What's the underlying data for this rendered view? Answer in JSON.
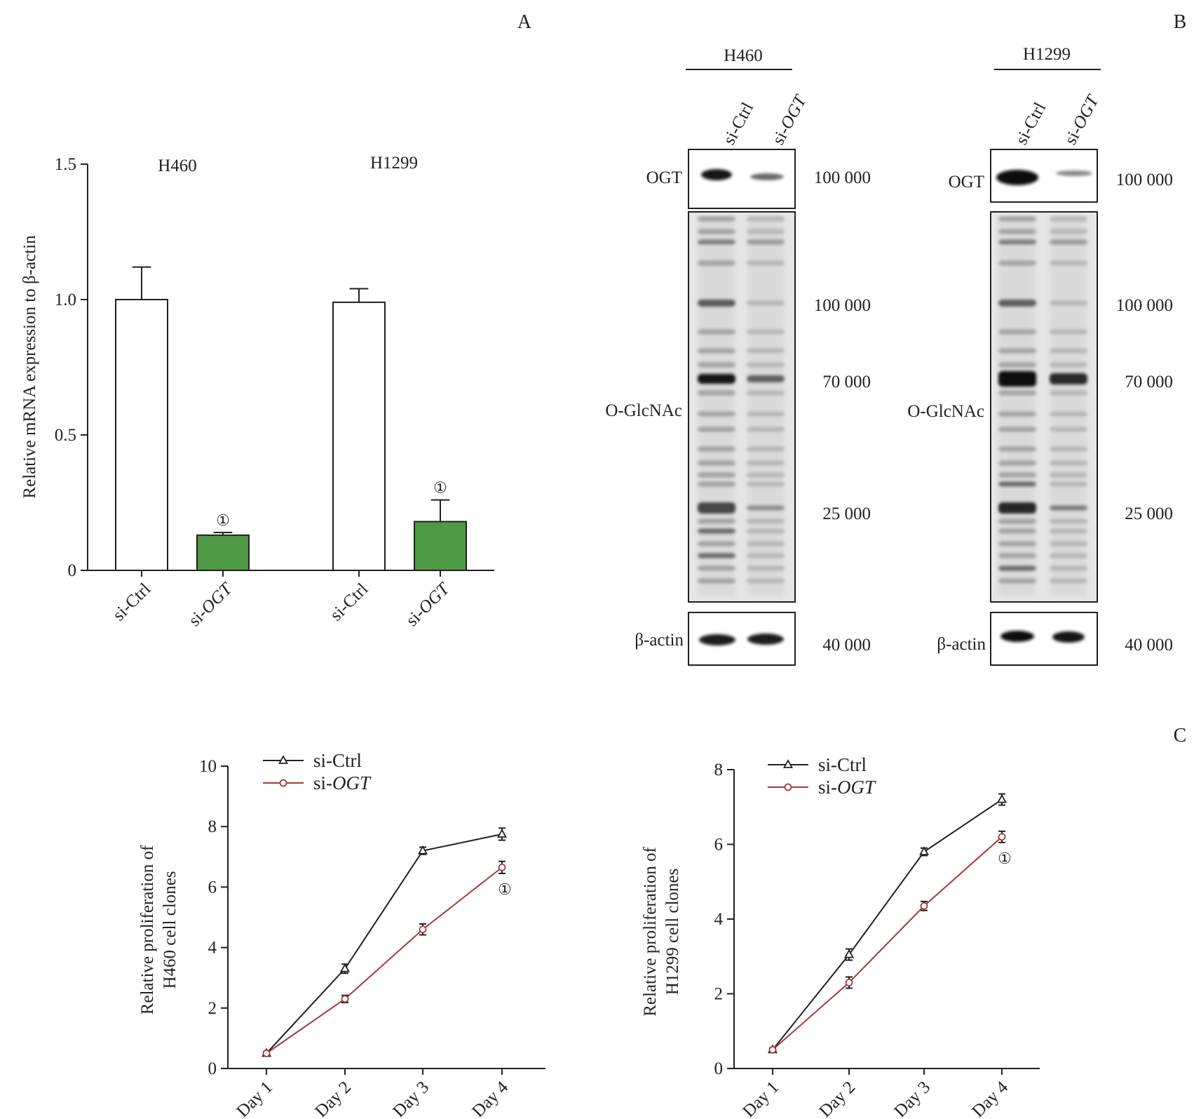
{
  "panel_letters": {
    "a": "A",
    "b": "B",
    "c": "C"
  },
  "sig_mark": "①",
  "chart_data": [
    {
      "id": "A",
      "type": "bar",
      "ylabel": "Relative mRNA expression to β-actin",
      "ylim": [
        0,
        1.5
      ],
      "yticks": [
        "0",
        "0.5",
        "1.0",
        "1.5"
      ],
      "ytick_values": [
        0,
        0.5,
        1.0,
        1.5
      ],
      "groups": [
        "H460",
        "H1299"
      ],
      "categories": [
        {
          "prefix": "si-",
          "name": "Ctrl",
          "italic": false
        },
        {
          "prefix": "si-",
          "name": "OGT",
          "italic": true
        },
        {
          "prefix": "si-",
          "name": "Ctrl",
          "italic": false
        },
        {
          "prefix": "si-",
          "name": "OGT",
          "italic": true
        }
      ],
      "values": [
        1.0,
        0.13,
        0.99,
        0.18
      ],
      "errors": [
        0.12,
        0.01,
        0.05,
        0.08
      ],
      "colors": [
        "#ffffff",
        "#4e9a45",
        "#ffffff",
        "#4e9a45"
      ],
      "significant": [
        false,
        true,
        false,
        true
      ]
    },
    {
      "id": "C1",
      "type": "line",
      "ylabel_lines": [
        "Relative proliferation of",
        "H460 cell clones"
      ],
      "categories": [
        "Day 1",
        "Day 2",
        "Day 3",
        "Day 4"
      ],
      "ylim": [
        0,
        10
      ],
      "yticks": [
        "0",
        "2",
        "4",
        "6",
        "8",
        "10"
      ],
      "ytick_values": [
        0,
        2,
        4,
        6,
        8,
        10
      ],
      "series": [
        {
          "prefix": "si-",
          "name": "Ctrl",
          "italic": false,
          "marker": "triangle",
          "color": "#231f20",
          "values": [
            0.5,
            3.3,
            7.2,
            7.75
          ],
          "errors": [
            0.05,
            0.15,
            0.12,
            0.2
          ]
        },
        {
          "prefix": "si-",
          "name": "OGT",
          "italic": true,
          "marker": "circle",
          "color": "#a23b3b",
          "values": [
            0.5,
            2.3,
            4.6,
            6.65
          ],
          "errors": [
            0.05,
            0.12,
            0.18,
            0.2
          ]
        }
      ]
    },
    {
      "id": "C2",
      "type": "line",
      "ylabel_lines": [
        "Relative proliferation of",
        "H1299 cell clones"
      ],
      "categories": [
        "Day 1",
        "Day 2",
        "Day 3",
        "Day 4"
      ],
      "ylim": [
        0,
        8
      ],
      "yticks": [
        "0",
        "2",
        "4",
        "6",
        "8"
      ],
      "ytick_values": [
        0,
        2,
        4,
        6,
        8
      ],
      "series": [
        {
          "prefix": "si-",
          "name": "Ctrl",
          "italic": false,
          "marker": "triangle",
          "color": "#231f20",
          "values": [
            0.5,
            3.05,
            5.8,
            7.2
          ],
          "errors": [
            0.05,
            0.15,
            0.1,
            0.15
          ]
        },
        {
          "prefix": "si-",
          "name": "OGT",
          "italic": true,
          "marker": "circle",
          "color": "#a23b3b",
          "values": [
            0.5,
            2.3,
            4.35,
            6.2
          ],
          "errors": [
            0.05,
            0.15,
            0.12,
            0.15
          ]
        }
      ]
    }
  ],
  "western": {
    "blots": [
      {
        "cell_line": "H460",
        "lanes": [
          {
            "prefix": "si-",
            "name": "Ctrl",
            "italic": false
          },
          {
            "prefix": "si-",
            "name": "OGT",
            "italic": true
          }
        ]
      },
      {
        "cell_line": "H1299",
        "lanes": [
          {
            "prefix": "si-",
            "name": "Ctrl",
            "italic": false
          },
          {
            "prefix": "si-",
            "name": "OGT",
            "italic": true
          }
        ]
      }
    ],
    "row_labels": {
      "ogt": "OGT",
      "oglcnac": "O-GlcNAc",
      "actin": "β-actin"
    },
    "mw_markers": [
      "100 000",
      "100 000",
      "70 000",
      "25 000",
      "40 000"
    ]
  }
}
